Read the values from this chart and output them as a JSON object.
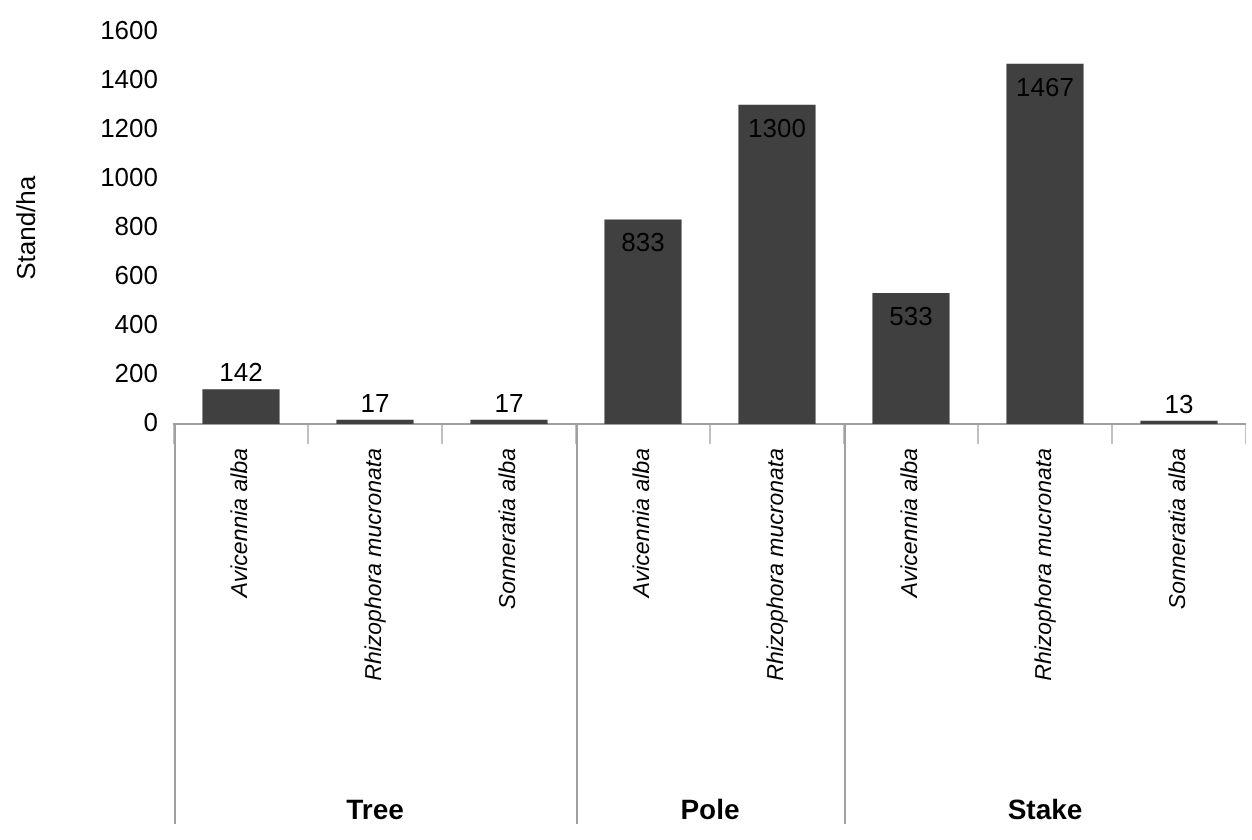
{
  "chart_data": [
    {
      "type": "bar",
      "ylabel": "Stand/ha",
      "xlabel": "Tree",
      "categories": [
        "Avicennia alba",
        "Rhizophora mucronata",
        "Sonneratia alba"
      ],
      "values": [
        142,
        17,
        17
      ],
      "color": "#404040",
      "ylim": [
        0,
        1600
      ],
      "yticks": [
        0,
        200,
        400,
        600,
        800,
        1000,
        1200,
        1400,
        1600
      ],
      "data_labels": true
    },
    {
      "type": "bar",
      "xlabel": "Pole",
      "categories": [
        "Avicennia alba",
        "Rhizophora mucronata"
      ],
      "values": [
        833,
        1300
      ],
      "color": "#404040",
      "ylim": [
        0,
        1600
      ],
      "yticks": [
        0,
        200,
        400,
        600,
        800,
        1000,
        1200,
        1400,
        1600
      ],
      "data_labels": true,
      "tick_labels": "x"
    },
    {
      "type": "bar",
      "xlabel": "Stake",
      "categories": [
        "Avicennia alba",
        "Rhizophora mucronata",
        "Sonneratia alba"
      ],
      "values": [
        533,
        1467,
        13
      ],
      "color": "#404040",
      "ylim": [
        0,
        1600
      ],
      "yticks": [
        0,
        200,
        400,
        600,
        800,
        1000,
        1200,
        1400,
        1600
      ],
      "data_labels": true,
      "tick_labels": "x"
    }
  ]
}
